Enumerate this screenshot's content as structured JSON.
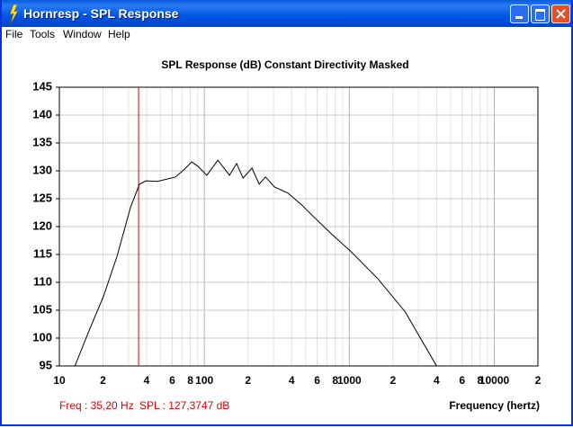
{
  "window": {
    "title": "Hornresp - SPL Response",
    "menu": [
      "File",
      "Tools",
      "Window",
      "Help"
    ]
  },
  "chart_data": {
    "type": "line",
    "title": "SPL Response (dB)   Constant Directivity   Masked",
    "x_label": "Frequency (hertz)",
    "x_scale": "log",
    "grid": true,
    "xlim": [
      10,
      20000
    ],
    "ylim": [
      95,
      145
    ],
    "xticks": [
      10,
      {
        "value": 20,
        "label": "2"
      },
      {
        "value": 40,
        "label": "4"
      },
      {
        "value": 60,
        "label": "6"
      },
      {
        "value": 80,
        "label": "8"
      },
      100,
      {
        "value": 200,
        "label": "2"
      },
      {
        "value": 400,
        "label": "4"
      },
      {
        "value": 600,
        "label": "6"
      },
      {
        "value": 800,
        "label": "8"
      },
      1000,
      {
        "value": 2000,
        "label": "2"
      },
      {
        "value": 4000,
        "label": "4"
      },
      {
        "value": 6000,
        "label": "6"
      },
      {
        "value": 8000,
        "label": "8"
      },
      10000,
      {
        "value": 20000,
        "label": "2"
      }
    ],
    "yticks": [
      95,
      100,
      105,
      110,
      115,
      120,
      125,
      130,
      135,
      140,
      145
    ],
    "x": [
      12.8,
      16.3,
      20.1,
      25.0,
      31.0,
      35.7,
      39.5,
      47.5,
      63.3,
      73,
      81.9,
      90.5,
      104,
      124,
      149,
      167,
      185,
      213,
      239,
      264,
      305,
      378,
      469,
      581,
      773,
      1000,
      1580,
      2430,
      4000
    ],
    "values": [
      95,
      101.8,
      107.4,
      114.7,
      123.5,
      127.6,
      128.2,
      128.1,
      128.9,
      130.3,
      131.6,
      130.8,
      129.2,
      131.9,
      129.2,
      131.3,
      128.7,
      130.5,
      127.6,
      128.9,
      127.1,
      126.0,
      123.9,
      121.5,
      118.4,
      115.8,
      110.6,
      104.7,
      95
    ],
    "color": "#000000",
    "marker": {
      "x": 35.2,
      "color": "#e00000",
      "freq_label": "Freq : 35,20 Hz",
      "spl_label": "SPL : 127,3747 dB"
    }
  }
}
